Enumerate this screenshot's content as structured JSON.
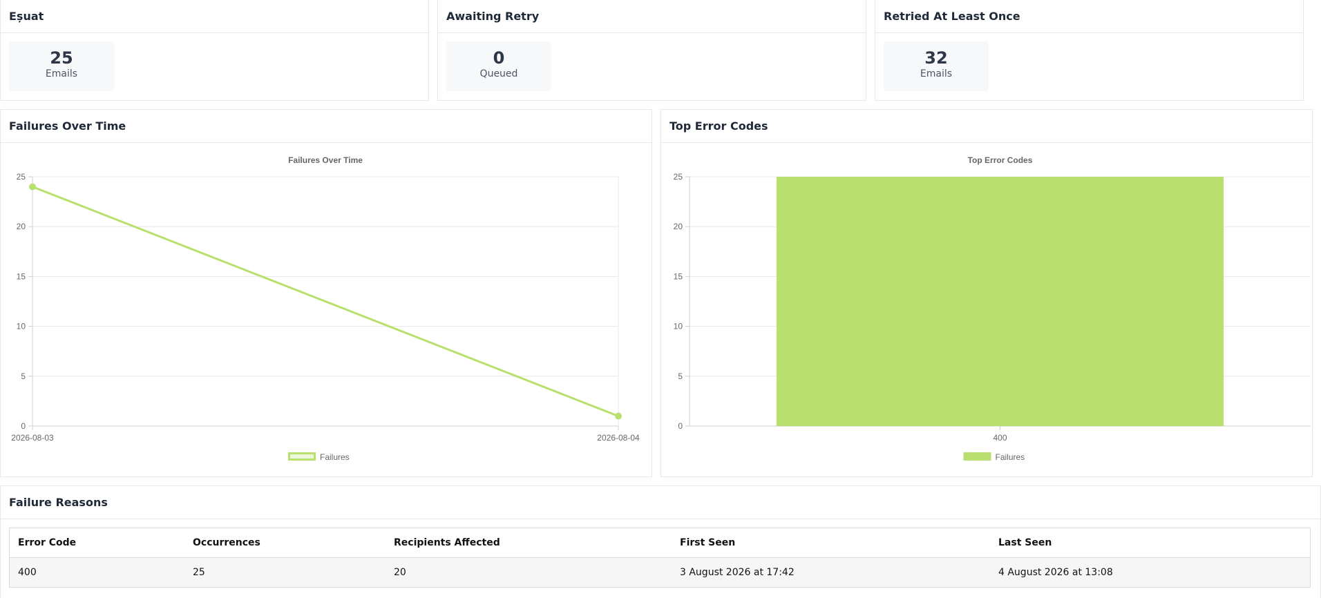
{
  "stats": [
    {
      "title": "Eșuat",
      "value": "25",
      "unit": "Emails"
    },
    {
      "title": "Awaiting Retry",
      "value": "0",
      "unit": "Queued"
    },
    {
      "title": "Retried At Least Once",
      "value": "32",
      "unit": "Emails"
    }
  ],
  "line_panel": {
    "title": "Failures Over Time"
  },
  "bar_panel": {
    "title": "Top Error Codes"
  },
  "accent_color": "#b9e06e",
  "chart_data": [
    {
      "type": "line",
      "title": "Failures Over Time",
      "x": [
        "2026-08-03",
        "2026-08-04"
      ],
      "series": [
        {
          "name": "Failures",
          "values": [
            24,
            1
          ]
        }
      ],
      "ylim": [
        0,
        25
      ],
      "yticks": [
        0,
        5,
        10,
        15,
        20,
        25
      ],
      "grid": true,
      "legend": "bottom"
    },
    {
      "type": "bar",
      "title": "Top Error Codes",
      "categories": [
        "400"
      ],
      "series": [
        {
          "name": "Failures",
          "values": [
            25
          ]
        }
      ],
      "ylim": [
        0,
        25
      ],
      "yticks": [
        0,
        5,
        10,
        15,
        20,
        25
      ],
      "grid": true,
      "legend": "bottom"
    }
  ],
  "reasons": {
    "title": "Failure Reasons",
    "headers": [
      "Error Code",
      "Occurrences",
      "Recipients Affected",
      "First Seen",
      "Last Seen"
    ],
    "rows": [
      [
        "400",
        "25",
        "20",
        "3 August 2026 at 17:42",
        "4 August 2026 at 13:08"
      ]
    ]
  }
}
